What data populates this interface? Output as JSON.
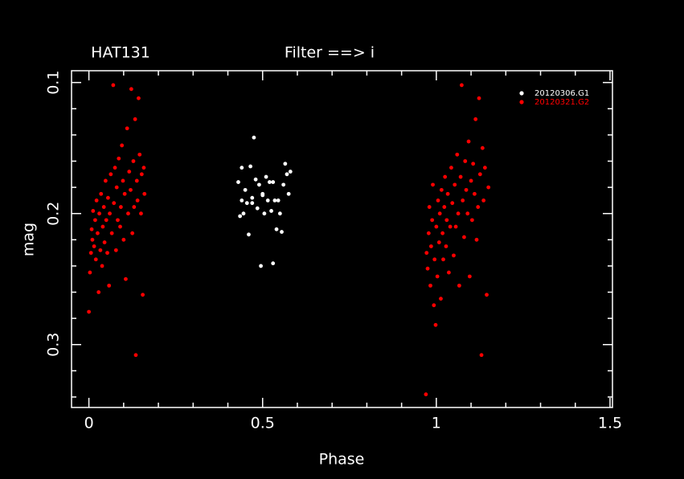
{
  "chart_data": {
    "type": "scatter",
    "title": "HAT131",
    "subtitle": "Filter ==> i",
    "x_label": "Phase",
    "y_label": "mag",
    "xlim": [
      -0.05,
      1.507
    ],
    "ylim": [
      0.091,
      0.348
    ],
    "invert_y": true,
    "xticks": [
      0,
      0.5,
      1,
      1.5
    ],
    "yticks": [
      0.1,
      0.2,
      0.3
    ],
    "xminor": [
      0.1,
      0.2,
      0.3,
      0.4,
      0.6,
      0.7,
      0.8,
      0.9,
      1.1,
      1.2,
      1.3,
      1.4
    ],
    "yminor": [
      0.12,
      0.14,
      0.16,
      0.18,
      0.22,
      0.24,
      0.26,
      0.28,
      0.32,
      0.34
    ],
    "legend": "upper right",
    "background": "#000000",
    "frame_color": "#ffffff",
    "series": [
      {
        "name": "20120306.G1",
        "color": "#ffffff",
        "x": [
          0.43,
          0.435,
          0.44,
          0.445,
          0.45,
          0.455,
          0.46,
          0.465,
          0.47,
          0.475,
          0.48,
          0.485,
          0.49,
          0.495,
          0.5,
          0.505,
          0.51,
          0.515,
          0.52,
          0.525,
          0.53,
          0.535,
          0.54,
          0.545,
          0.55,
          0.555,
          0.56,
          0.565,
          0.57,
          0.575,
          0.58,
          0.44,
          0.47,
          0.5,
          0.53
        ],
        "values": [
          0.176,
          0.202,
          0.19,
          0.2,
          0.182,
          0.192,
          0.216,
          0.164,
          0.188,
          0.142,
          0.174,
          0.196,
          0.178,
          0.24,
          0.186,
          0.2,
          0.172,
          0.19,
          0.176,
          0.198,
          0.238,
          0.19,
          0.212,
          0.19,
          0.2,
          0.214,
          0.178,
          0.162,
          0.17,
          0.185,
          0.168,
          0.165,
          0.192,
          0.185,
          0.176
        ]
      },
      {
        "name": "20120321.G2",
        "color": "#ff0000",
        "x": [
          0.0,
          0.003,
          0.006,
          0.008,
          0.01,
          0.012,
          0.015,
          0.018,
          0.02,
          0.022,
          0.025,
          0.028,
          0.03,
          0.033,
          0.035,
          0.038,
          0.04,
          0.043,
          0.045,
          0.048,
          0.05,
          0.053,
          0.055,
          0.058,
          0.06,
          0.063,
          0.066,
          0.07,
          0.072,
          0.075,
          0.078,
          0.08,
          0.083,
          0.086,
          0.09,
          0.092,
          0.095,
          0.098,
          0.1,
          0.103,
          0.106,
          0.11,
          0.113,
          0.116,
          0.12,
          0.122,
          0.125,
          0.128,
          0.13,
          0.133,
          0.135,
          0.138,
          0.14,
          0.143,
          0.146,
          0.15,
          0.152,
          0.155,
          0.158,
          0.16,
          0.97,
          0.972,
          0.975,
          0.978,
          0.98,
          0.983,
          0.985,
          0.988,
          0.99,
          0.993,
          0.995,
          0.998,
          1.0,
          1.003,
          1.005,
          1.008,
          1.01,
          1.013,
          1.015,
          1.018,
          1.02,
          1.023,
          1.025,
          1.028,
          1.03,
          1.033,
          1.036,
          1.04,
          1.043,
          1.046,
          1.05,
          1.053,
          1.056,
          1.06,
          1.063,
          1.066,
          1.07,
          1.073,
          1.076,
          1.08,
          1.083,
          1.086,
          1.09,
          1.093,
          1.096,
          1.1,
          1.103,
          1.106,
          1.11,
          1.113,
          1.116,
          1.12,
          1.123,
          1.126,
          1.13,
          1.133,
          1.136,
          1.14,
          1.145,
          1.15
        ],
        "values": [
          0.275,
          0.245,
          0.23,
          0.212,
          0.22,
          0.198,
          0.225,
          0.205,
          0.235,
          0.19,
          0.215,
          0.26,
          0.2,
          0.228,
          0.185,
          0.24,
          0.21,
          0.195,
          0.222,
          0.175,
          0.205,
          0.23,
          0.188,
          0.255,
          0.2,
          0.17,
          0.215,
          0.102,
          0.192,
          0.165,
          0.228,
          0.18,
          0.205,
          0.158,
          0.21,
          0.195,
          0.148,
          0.175,
          0.22,
          0.185,
          0.25,
          0.135,
          0.2,
          0.168,
          0.182,
          0.105,
          0.215,
          0.16,
          0.195,
          0.128,
          0.308,
          0.175,
          0.19,
          0.112,
          0.155,
          0.2,
          0.17,
          0.262,
          0.165,
          0.185,
          0.338,
          0.23,
          0.242,
          0.215,
          0.195,
          0.255,
          0.225,
          0.205,
          0.178,
          0.27,
          0.235,
          0.285,
          0.21,
          0.248,
          0.19,
          0.222,
          0.2,
          0.265,
          0.182,
          0.215,
          0.235,
          0.195,
          0.172,
          0.225,
          0.205,
          0.185,
          0.245,
          0.21,
          0.165,
          0.192,
          0.232,
          0.178,
          0.21,
          0.155,
          0.2,
          0.255,
          0.172,
          0.102,
          0.19,
          0.218,
          0.16,
          0.182,
          0.2,
          0.145,
          0.248,
          0.175,
          0.205,
          0.162,
          0.185,
          0.128,
          0.22,
          0.195,
          0.112,
          0.17,
          0.308,
          0.15,
          0.19,
          0.165,
          0.262,
          0.18
        ]
      }
    ]
  }
}
